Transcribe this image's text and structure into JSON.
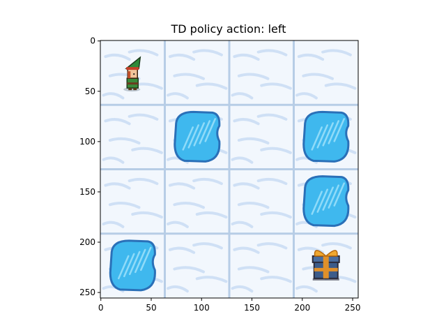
{
  "title": "TD policy action: left",
  "env": {
    "grid_size": 4,
    "pixel_extent": 256,
    "tiles": [
      [
        "start",
        "frozen",
        "frozen",
        "frozen"
      ],
      [
        "frozen",
        "hole",
        "frozen",
        "hole"
      ],
      [
        "frozen",
        "frozen",
        "frozen",
        "hole"
      ],
      [
        "hole",
        "frozen",
        "frozen",
        "goal"
      ]
    ],
    "agent": {
      "row": 0,
      "col": 0,
      "icon": "elf-icon"
    },
    "goal_icon": "gift-icon",
    "hole_icon": "ice-hole-icon",
    "colors": {
      "snow": "#f2f7fd",
      "snow_streak": "#cfe0f5",
      "grid_line": "#b7cde6",
      "hole_fill": "#3fb8ee",
      "hole_border": "#2a70b8",
      "hole_highlight": "#9ee2fb"
    }
  },
  "axes": {
    "x_ticks": [
      "0",
      "50",
      "100",
      "150",
      "200",
      "250"
    ],
    "y_ticks": [
      "0",
      "50",
      "100",
      "150",
      "200",
      "250"
    ],
    "x_tick_values": [
      0,
      50,
      100,
      150,
      200,
      250
    ],
    "y_tick_values": [
      0,
      50,
      100,
      150,
      200,
      250
    ],
    "xlim": [
      -0.5,
      255.5
    ],
    "ylim": [
      255.5,
      -0.5
    ]
  }
}
